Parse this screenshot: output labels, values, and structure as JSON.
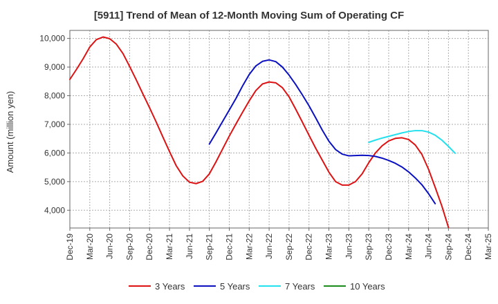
{
  "chart_data": {
    "type": "line",
    "title": "[5911]  Trend of Mean of 12-Month Moving Sum of Operating CF",
    "xlabel": "",
    "ylabel": "Amount (million yen)",
    "ylim": [
      3380,
      10280
    ],
    "y_ticks": [
      4000,
      5000,
      6000,
      7000,
      8000,
      9000,
      10000
    ],
    "y_tick_labels": [
      "4,000",
      "5,000",
      "6,000",
      "7,000",
      "8,000",
      "9,000",
      "10,000"
    ],
    "x_tick_labels": [
      "Dec-19",
      "Mar-20",
      "Jun-20",
      "Sep-20",
      "Dec-20",
      "Mar-21",
      "Jun-21",
      "Sep-21",
      "Dec-21",
      "Mar-22",
      "Jun-22",
      "Sep-22",
      "Dec-22",
      "Mar-23",
      "Jun-23",
      "Sep-23",
      "Dec-23",
      "Mar-24",
      "Jun-24",
      "Sep-24",
      "Dec-24",
      "Mar-25"
    ],
    "x_start": "Dec-19",
    "x_months": 63,
    "series": [
      {
        "name": "3 Years",
        "color": "#dd1111",
        "start_month": 0,
        "values": [
          8570,
          8920,
          9290,
          9700,
          9960,
          10050,
          9990,
          9800,
          9470,
          9020,
          8550,
          8060,
          7580,
          7080,
          6560,
          6050,
          5560,
          5200,
          4980,
          4930,
          5010,
          5270,
          5690,
          6140,
          6590,
          7010,
          7420,
          7820,
          8180,
          8410,
          8480,
          8450,
          8280,
          7960,
          7530,
          7080,
          6620,
          6170,
          5750,
          5330,
          5000,
          4880,
          4880,
          5000,
          5270,
          5660,
          6000,
          6250,
          6420,
          6510,
          6530,
          6470,
          6280,
          5950,
          5430,
          4800,
          4150,
          3400
        ]
      },
      {
        "name": "5 Years",
        "color": "#0a10c0",
        "start_month": 21,
        "values": [
          6310,
          6700,
          7100,
          7500,
          7900,
          8340,
          8740,
          9040,
          9200,
          9250,
          9190,
          9000,
          8720,
          8390,
          8030,
          7650,
          7230,
          6800,
          6410,
          6120,
          5960,
          5900,
          5910,
          5920,
          5910,
          5880,
          5820,
          5740,
          5640,
          5510,
          5340,
          5130,
          4890,
          4580,
          4230
        ]
      },
      {
        "name": "7 Years",
        "color": "#22e0ee",
        "start_month": 45,
        "values": [
          6370,
          6450,
          6520,
          6580,
          6640,
          6700,
          6750,
          6780,
          6780,
          6730,
          6620,
          6450,
          6230,
          5990
        ]
      },
      {
        "name": "10 Years",
        "color": "#1a8a1a",
        "start_month": 0,
        "values": []
      }
    ],
    "legend": {
      "position": "bottom",
      "items": [
        {
          "label": "3 Years",
          "color": "#dd1111"
        },
        {
          "label": "5 Years",
          "color": "#0a10c0"
        },
        {
          "label": "7 Years",
          "color": "#22e0ee"
        },
        {
          "label": "10 Years",
          "color": "#1a8a1a"
        }
      ]
    },
    "grid": true
  }
}
